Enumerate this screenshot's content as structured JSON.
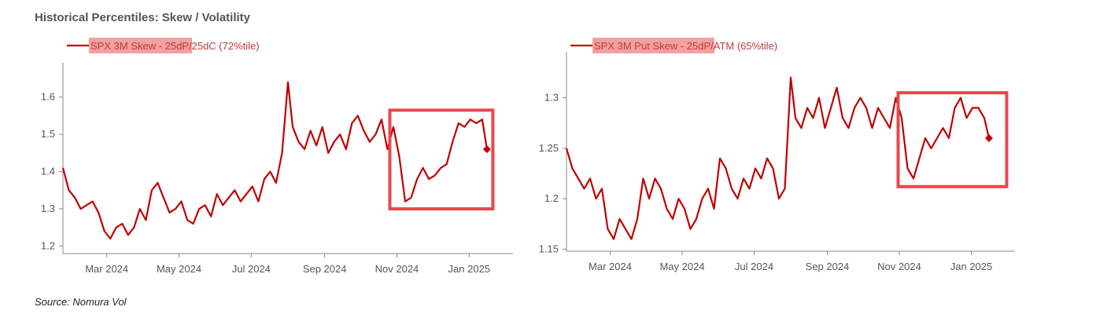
{
  "page": {
    "title": "Historical Percentiles: Skew / Volatility",
    "source": "Source: Nomura Vol"
  },
  "colors": {
    "series": "#c00000",
    "highlight_box": "#e8474c",
    "legend_highlight": "#f2a0a0",
    "axis": "#888888"
  },
  "chart_data": [
    {
      "type": "line",
      "legend": {
        "highlighted": "SPX 3M Skew",
        "rest": " - 25dP/25dC (72%tile)",
        "placement": "top-left"
      },
      "xlabels": [
        "Mar 2024",
        "May 2024",
        "Jul 2024",
        "Sep 2024",
        "Nov 2024",
        "Jan 2025"
      ],
      "xlabel_dates": [
        "2024-03-01",
        "2024-05-01",
        "2024-07-01",
        "2024-09-01",
        "2024-11-01",
        "2025-01-01"
      ],
      "xlim": [
        "2024-01-24",
        "2025-02-07"
      ],
      "ylim": [
        1.18,
        1.65
      ],
      "yticks": [
        1.2,
        1.3,
        1.4,
        1.5,
        1.6
      ],
      "ytick_labels": [
        "1.2",
        "1.3",
        "1.4",
        "1.5",
        "1.6"
      ],
      "grid": false,
      "highlight": {
        "x_start": "2024-10-26",
        "x_end": "2025-01-21",
        "y_low": 1.3,
        "y_high": 1.565
      },
      "series": [
        {
          "x": [
            "2024-01-24",
            "2024-01-29",
            "2024-02-03",
            "2024-02-08",
            "2024-02-13",
            "2024-02-18",
            "2024-02-23",
            "2024-02-28",
            "2024-03-04",
            "2024-03-09",
            "2024-03-14",
            "2024-03-19",
            "2024-03-24",
            "2024-03-29",
            "2024-04-03",
            "2024-04-08",
            "2024-04-13",
            "2024-04-18",
            "2024-04-23",
            "2024-04-28",
            "2024-05-03",
            "2024-05-08",
            "2024-05-13",
            "2024-05-18",
            "2024-05-23",
            "2024-05-28",
            "2024-06-02",
            "2024-06-07",
            "2024-06-12",
            "2024-06-17",
            "2024-06-22",
            "2024-06-27",
            "2024-07-02",
            "2024-07-07",
            "2024-07-12",
            "2024-07-17",
            "2024-07-22",
            "2024-07-27",
            "2024-08-01",
            "2024-08-05",
            "2024-08-10",
            "2024-08-15",
            "2024-08-20",
            "2024-08-25",
            "2024-08-30",
            "2024-09-04",
            "2024-09-09",
            "2024-09-14",
            "2024-09-19",
            "2024-09-24",
            "2024-09-29",
            "2024-10-04",
            "2024-10-09",
            "2024-10-14",
            "2024-10-19",
            "2024-10-24",
            "2024-10-29",
            "2024-11-03",
            "2024-11-08",
            "2024-11-13",
            "2024-11-18",
            "2024-11-23",
            "2024-11-28",
            "2024-12-03",
            "2024-12-08",
            "2024-12-13",
            "2024-12-18",
            "2024-12-23",
            "2024-12-28",
            "2025-01-02",
            "2025-01-07",
            "2025-01-12",
            "2025-01-16"
          ],
          "y": [
            1.41,
            1.35,
            1.33,
            1.3,
            1.31,
            1.32,
            1.29,
            1.24,
            1.22,
            1.25,
            1.26,
            1.23,
            1.25,
            1.3,
            1.27,
            1.35,
            1.37,
            1.33,
            1.29,
            1.3,
            1.32,
            1.27,
            1.26,
            1.3,
            1.31,
            1.28,
            1.34,
            1.31,
            1.33,
            1.35,
            1.32,
            1.34,
            1.36,
            1.32,
            1.38,
            1.4,
            1.37,
            1.45,
            1.64,
            1.52,
            1.48,
            1.46,
            1.51,
            1.47,
            1.52,
            1.45,
            1.48,
            1.5,
            1.46,
            1.53,
            1.55,
            1.51,
            1.48,
            1.5,
            1.54,
            1.46,
            1.52,
            1.44,
            1.32,
            1.33,
            1.38,
            1.41,
            1.38,
            1.39,
            1.41,
            1.42,
            1.48,
            1.53,
            1.52,
            1.54,
            1.53,
            1.54,
            1.46
          ]
        }
      ]
    },
    {
      "type": "line",
      "legend": {
        "highlighted": "SPX 3M Put Skew",
        "rest": " - 25dP/ATM (65%tile)",
        "placement": "top-left"
      },
      "xlabels": [
        "Mar 2024",
        "May 2024",
        "Jul 2024",
        "Sep 2024",
        "Nov 2024",
        "Jan 2025"
      ],
      "xlabel_dates": [
        "2024-03-01",
        "2024-05-01",
        "2024-07-01",
        "2024-09-01",
        "2024-11-01",
        "2025-01-01"
      ],
      "xlim": [
        "2024-01-24",
        "2025-02-07"
      ],
      "ylim": [
        1.148,
        1.33
      ],
      "yticks": [
        1.15,
        1.2,
        1.25,
        1.3
      ],
      "ytick_labels": [
        "1.15",
        "1.2",
        "1.25",
        "1.3"
      ],
      "grid": false,
      "highlight": {
        "x_start": "2024-10-31",
        "x_end": "2025-01-31",
        "y_low": 1.212,
        "y_high": 1.305
      },
      "series": [
        {
          "x": [
            "2024-01-24",
            "2024-01-29",
            "2024-02-03",
            "2024-02-08",
            "2024-02-13",
            "2024-02-18",
            "2024-02-23",
            "2024-02-28",
            "2024-03-04",
            "2024-03-09",
            "2024-03-14",
            "2024-03-19",
            "2024-03-24",
            "2024-03-29",
            "2024-04-03",
            "2024-04-08",
            "2024-04-13",
            "2024-04-18",
            "2024-04-23",
            "2024-04-28",
            "2024-05-03",
            "2024-05-08",
            "2024-05-13",
            "2024-05-18",
            "2024-05-23",
            "2024-05-28",
            "2024-06-02",
            "2024-06-07",
            "2024-06-12",
            "2024-06-17",
            "2024-06-22",
            "2024-06-27",
            "2024-07-02",
            "2024-07-07",
            "2024-07-12",
            "2024-07-17",
            "2024-07-22",
            "2024-07-27",
            "2024-08-01",
            "2024-08-05",
            "2024-08-10",
            "2024-08-15",
            "2024-08-20",
            "2024-08-25",
            "2024-08-30",
            "2024-09-04",
            "2024-09-09",
            "2024-09-14",
            "2024-09-19",
            "2024-09-24",
            "2024-09-29",
            "2024-10-04",
            "2024-10-09",
            "2024-10-14",
            "2024-10-19",
            "2024-10-24",
            "2024-10-29",
            "2024-11-03",
            "2024-11-08",
            "2024-11-13",
            "2024-11-18",
            "2024-11-23",
            "2024-11-28",
            "2024-12-03",
            "2024-12-08",
            "2024-12-13",
            "2024-12-18",
            "2024-12-23",
            "2024-12-28",
            "2025-01-02",
            "2025-01-07",
            "2025-01-12",
            "2025-01-16"
          ],
          "y": [
            1.25,
            1.23,
            1.22,
            1.21,
            1.22,
            1.2,
            1.21,
            1.17,
            1.16,
            1.18,
            1.17,
            1.16,
            1.18,
            1.22,
            1.2,
            1.22,
            1.21,
            1.19,
            1.18,
            1.2,
            1.19,
            1.17,
            1.18,
            1.2,
            1.21,
            1.19,
            1.24,
            1.23,
            1.21,
            1.2,
            1.22,
            1.21,
            1.23,
            1.22,
            1.24,
            1.23,
            1.2,
            1.21,
            1.32,
            1.28,
            1.27,
            1.29,
            1.28,
            1.3,
            1.27,
            1.29,
            1.31,
            1.28,
            1.27,
            1.29,
            1.3,
            1.29,
            1.27,
            1.29,
            1.28,
            1.27,
            1.3,
            1.28,
            1.23,
            1.22,
            1.24,
            1.26,
            1.25,
            1.26,
            1.27,
            1.26,
            1.29,
            1.3,
            1.28,
            1.29,
            1.29,
            1.28,
            1.26
          ]
        }
      ]
    }
  ]
}
